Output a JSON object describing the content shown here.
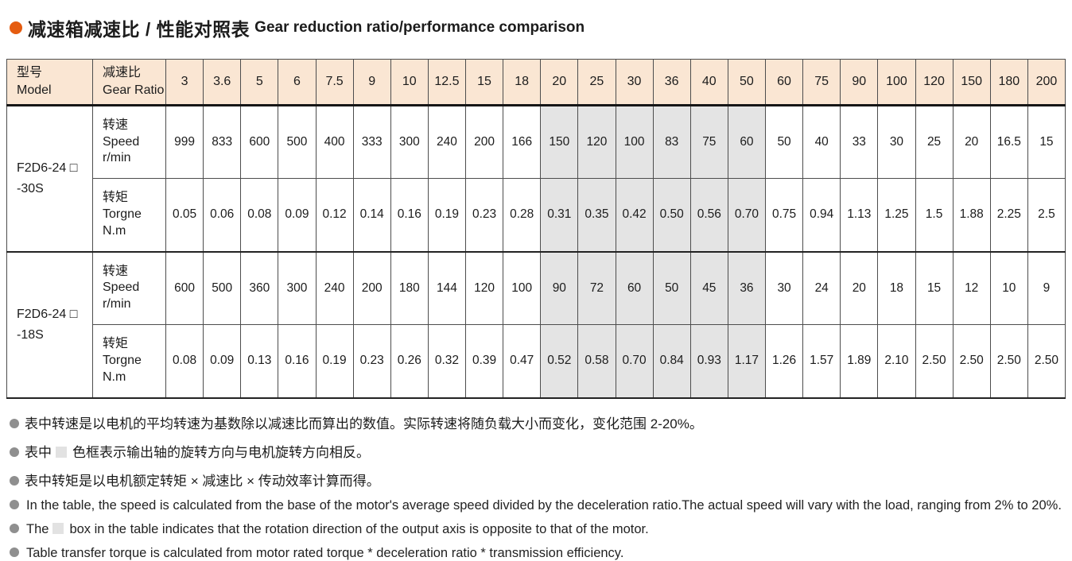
{
  "title": {
    "zh": "减速箱减速比 / 性能对照表",
    "en": "Gear reduction ratio/performance comparison"
  },
  "colors": {
    "accent_orange": "#e55c10",
    "header_bg": "#fae6d3",
    "shaded_cell_bg": "#e4e4e4",
    "border": "#4d4d4d",
    "note_bullet": "#8f8f8f"
  },
  "table": {
    "header": {
      "model_label_zh": "型号",
      "model_label_en": "Model",
      "ratio_label_zh": "减速比",
      "ratio_label_en": "Gear Ratio",
      "ratios": [
        "3",
        "3.6",
        "5",
        "6",
        "7.5",
        "9",
        "10",
        "12.5",
        "15",
        "18",
        "20",
        "25",
        "30",
        "36",
        "40",
        "50",
        "60",
        "75",
        "90",
        "100",
        "120",
        "150",
        "180",
        "200"
      ]
    },
    "shaded_ratio_indices": [
      10,
      11,
      12,
      13,
      14,
      15
    ],
    "row_labels": {
      "speed": {
        "zh": "转速",
        "en": "Speed",
        "unit": "r/min"
      },
      "torque": {
        "zh": "转矩",
        "en": "Torgne",
        "unit": "N.m"
      }
    },
    "models": [
      {
        "model_line1": "F2D6-24 □",
        "model_line2": "-30S",
        "speed": [
          "999",
          "833",
          "600",
          "500",
          "400",
          "333",
          "300",
          "240",
          "200",
          "166",
          "150",
          "120",
          "100",
          "83",
          "75",
          "60",
          "50",
          "40",
          "33",
          "30",
          "25",
          "20",
          "16.5",
          "15"
        ],
        "torque": [
          "0.05",
          "0.06",
          "0.08",
          "0.09",
          "0.12",
          "0.14",
          "0.16",
          "0.19",
          "0.23",
          "0.28",
          "0.31",
          "0.35",
          "0.42",
          "0.50",
          "0.56",
          "0.70",
          "0.75",
          "0.94",
          "1.13",
          "1.25",
          "1.5",
          "1.88",
          "2.25",
          "2.5"
        ]
      },
      {
        "model_line1": "F2D6-24 □",
        "model_line2": "-18S",
        "speed": [
          "600",
          "500",
          "360",
          "300",
          "240",
          "200",
          "180",
          "144",
          "120",
          "100",
          "90",
          "72",
          "60",
          "50",
          "45",
          "36",
          "30",
          "24",
          "20",
          "18",
          "15",
          "12",
          "10",
          "9"
        ],
        "torque": [
          "0.08",
          "0.09",
          "0.13",
          "0.16",
          "0.19",
          "0.23",
          "0.26",
          "0.32",
          "0.39",
          "0.47",
          "0.52",
          "0.58",
          "0.70",
          "0.84",
          "0.93",
          "1.17",
          "1.26",
          "1.57",
          "1.89",
          "2.10",
          "2.50",
          "2.50",
          "2.50",
          "2.50"
        ]
      }
    ]
  },
  "notes": [
    {
      "lang": "zh",
      "box": false,
      "text": "表中转速是以电机的平均转速为基数除以减速比而算出的数值。实际转速将随负载大小而变化，变化范围 2-20%。"
    },
    {
      "lang": "zh",
      "box": true,
      "text": "表中",
      "text_after": "色框表示输出轴的旋转方向与电机旋转方向相反。"
    },
    {
      "lang": "zh",
      "box": false,
      "text": "表中转矩是以电机额定转矩 × 减速比 × 传动效率计算而得。"
    },
    {
      "lang": "en",
      "box": false,
      "text": "In the table, the speed is calculated from the base of the motor's average speed  divided by the deceleration ratio.The actual speed will vary with the load, ranging from 2% to 20%."
    },
    {
      "lang": "en",
      "box": true,
      "text": "The",
      "text_after": "box in the table indicates that the rotation direction of the output axis is opposite to that of the motor."
    },
    {
      "lang": "en",
      "box": false,
      "text": "Table transfer torque is calculated from motor rated torque * deceleration ratio * transmission efficiency."
    }
  ]
}
